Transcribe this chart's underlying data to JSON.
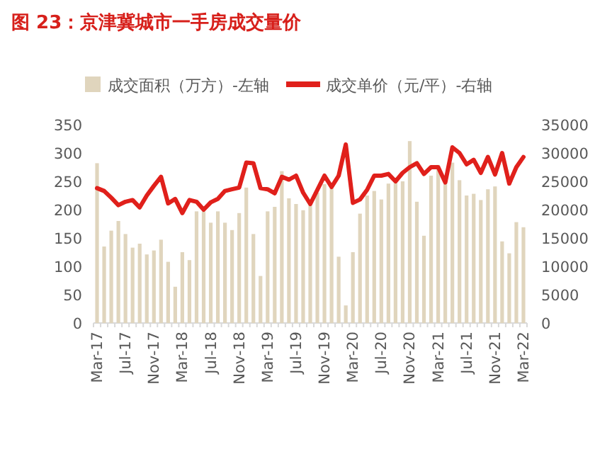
{
  "chart_data": {
    "type": "bar",
    "title": "图 23：京津冀城市一手房成交量价",
    "categories": [
      "Mar-17",
      null,
      null,
      null,
      "Jul-17",
      null,
      null,
      null,
      "Nov-17",
      null,
      null,
      null,
      "Mar-18",
      null,
      null,
      null,
      "Jul-18",
      null,
      null,
      null,
      "Nov-18",
      null,
      null,
      null,
      "Mar-19",
      null,
      null,
      null,
      "Jul-19",
      null,
      null,
      null,
      "Nov-19",
      null,
      null,
      null,
      "Mar-20",
      null,
      null,
      null,
      "Jul-20",
      null,
      null,
      null,
      "Nov-20",
      null,
      null,
      null,
      "Mar-21",
      null,
      null,
      null,
      "Jul-21",
      null,
      null,
      null,
      "Nov-21",
      null,
      null,
      null,
      "Mar-22"
    ],
    "series": [
      {
        "name": "成交面积（万方）-左轴",
        "color": "#e0d5bd",
        "values": [
          282,
          135,
          163,
          180,
          157,
          133,
          140,
          121,
          128,
          147,
          108,
          64,
          125,
          111,
          197,
          197,
          177,
          197,
          177,
          164,
          194,
          239,
          157,
          83,
          197,
          205,
          268,
          220,
          210,
          199,
          215,
          230,
          245,
          240,
          117,
          31,
          125,
          193,
          225,
          233,
          218,
          246,
          254,
          250,
          321,
          214,
          154,
          260,
          279,
          246,
          283,
          252,
          225,
          228,
          217,
          236,
          241,
          144,
          123,
          178,
          169
        ]
      },
      {
        "name": "成交单价（元/平）-右轴",
        "type": "line",
        "axis": "y2",
        "color": "#e0201b",
        "values": [
          23800,
          23300,
          22100,
          20800,
          21400,
          21700,
          20400,
          22500,
          24200,
          25800,
          21100,
          21900,
          19400,
          21700,
          21400,
          20000,
          21300,
          21900,
          23300,
          23600,
          23900,
          28300,
          28200,
          23800,
          23600,
          22900,
          25800,
          25300,
          26000,
          23000,
          21000,
          23500,
          26000,
          24000,
          26000,
          31500,
          21200,
          21800,
          23500,
          26000,
          26000,
          26300,
          25000,
          26500,
          27500,
          28200,
          26300,
          27500,
          27500,
          24800,
          31000,
          30000,
          28000,
          28800,
          26500,
          29300,
          26200,
          30000,
          24600,
          27500,
          29300
        ]
      }
    ],
    "ylim": [
      0,
      350
    ],
    "yticks": [
      0,
      50,
      100,
      150,
      200,
      250,
      300,
      350
    ],
    "y2lim": [
      0,
      35000
    ],
    "y2ticks": [
      0,
      5000,
      10000,
      15000,
      20000,
      25000,
      30000,
      35000
    ],
    "legend": "top"
  }
}
